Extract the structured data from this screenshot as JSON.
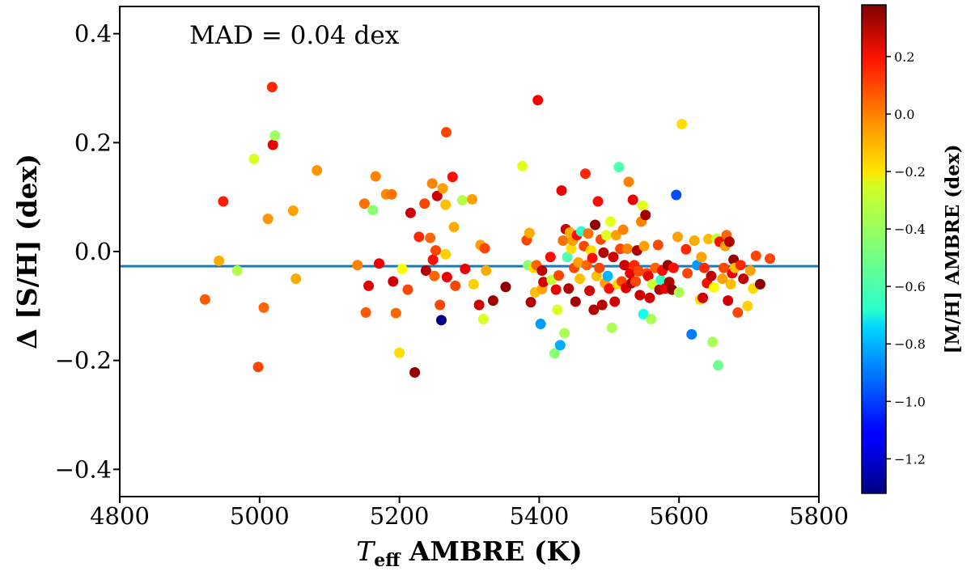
{
  "chart_data": {
    "type": "scatter",
    "xlabel": "T_eff AMBRE (K)",
    "xlabel_main": "T",
    "xlabel_sub": "eff",
    "xlabel_rest": " AMBRE (K)",
    "ylabel": "Δ [S/H] (dex)",
    "annotation": "MAD = 0.04 dex",
    "xlim": [
      4800,
      5800
    ],
    "ylim": [
      -0.45,
      0.45
    ],
    "x_ticks": [
      4800,
      5000,
      5200,
      5400,
      5600,
      5800
    ],
    "x_tick_labels": [
      "4800",
      "5000",
      "5200",
      "5400",
      "5600",
      "5800"
    ],
    "y_ticks": [
      0.4,
      0.2,
      0.0,
      -0.2,
      -0.4
    ],
    "y_tick_labels": [
      "0.4",
      "0.2",
      "0.0",
      "−0.2",
      "−0.4"
    ],
    "reference_line": {
      "y": -0.027,
      "color": "#1f77b4"
    },
    "colorbar": {
      "label": "[M/H] AMBRE (dex)",
      "colormap": "jet",
      "range": [
        -1.32,
        0.38
      ],
      "ticks": [
        0.2,
        0.0,
        -0.2,
        -0.4,
        -0.6,
        -0.8,
        -1.0,
        -1.2
      ],
      "tick_labels": [
        "0.2",
        "0.0",
        "−0.2",
        "−0.4",
        "−0.6",
        "−0.8",
        "−1.0",
        "−1.2"
      ]
    },
    "points": [
      {
        "teff": 4922,
        "dsh": -0.088,
        "mh": 0.02
      },
      {
        "teff": 4942,
        "dsh": -0.017,
        "mh": -0.12
      },
      {
        "teff": 4948,
        "dsh": 0.092,
        "mh": 0.12
      },
      {
        "teff": 4968,
        "dsh": -0.035,
        "mh": -0.38
      },
      {
        "teff": 4992,
        "dsh": 0.17,
        "mh": -0.32
      },
      {
        "teff": 4998,
        "dsh": -0.212,
        "mh": 0.05
      },
      {
        "teff": 5006,
        "dsh": -0.103,
        "mh": 0.0
      },
      {
        "teff": 5012,
        "dsh": 0.06,
        "mh": -0.08
      },
      {
        "teff": 5018,
        "dsh": 0.302,
        "mh": 0.1
      },
      {
        "teff": 5019,
        "dsh": 0.196,
        "mh": 0.2
      },
      {
        "teff": 5022,
        "dsh": 0.213,
        "mh": -0.42
      },
      {
        "teff": 5048,
        "dsh": 0.075,
        "mh": -0.1
      },
      {
        "teff": 5052,
        "dsh": -0.05,
        "mh": -0.12
      },
      {
        "teff": 5082,
        "dsh": 0.149,
        "mh": -0.08
      },
      {
        "teff": 5140,
        "dsh": -0.025,
        "mh": -0.05
      },
      {
        "teff": 5150,
        "dsh": 0.088,
        "mh": -0.02
      },
      {
        "teff": 5152,
        "dsh": -0.112,
        "mh": 0.02
      },
      {
        "teff": 5156,
        "dsh": -0.063,
        "mh": 0.22
      },
      {
        "teff": 5162,
        "dsh": 0.076,
        "mh": -0.45
      },
      {
        "teff": 5166,
        "dsh": 0.138,
        "mh": -0.05
      },
      {
        "teff": 5171,
        "dsh": -0.022,
        "mh": 0.2
      },
      {
        "teff": 5181,
        "dsh": 0.105,
        "mh": -0.06
      },
      {
        "teff": 5189,
        "dsh": 0.105,
        "mh": -0.02
      },
      {
        "teff": 5191,
        "dsh": -0.055,
        "mh": 0.25
      },
      {
        "teff": 5195,
        "dsh": -0.113,
        "mh": 0.0
      },
      {
        "teff": 5200,
        "dsh": -0.186,
        "mh": -0.2
      },
      {
        "teff": 5204,
        "dsh": -0.032,
        "mh": -0.25
      },
      {
        "teff": 5212,
        "dsh": -0.07,
        "mh": 0.05
      },
      {
        "teff": 5216,
        "dsh": 0.071,
        "mh": 0.25
      },
      {
        "teff": 5222,
        "dsh": -0.222,
        "mh": 0.35
      },
      {
        "teff": 5228,
        "dsh": 0.027,
        "mh": 0.1
      },
      {
        "teff": 5236,
        "dsh": 0.088,
        "mh": 0.05
      },
      {
        "teff": 5238,
        "dsh": -0.035,
        "mh": 0.3
      },
      {
        "teff": 5244,
        "dsh": 0.025,
        "mh": 0.0
      },
      {
        "teff": 5247,
        "dsh": 0.125,
        "mh": -0.05
      },
      {
        "teff": 5248,
        "dsh": -0.015,
        "mh": 0.15
      },
      {
        "teff": 5250,
        "dsh": -0.045,
        "mh": 0.0
      },
      {
        "teff": 5252,
        "dsh": 0.002,
        "mh": 0.05
      },
      {
        "teff": 5254,
        "dsh": 0.102,
        "mh": 0.25
      },
      {
        "teff": 5258,
        "dsh": -0.098,
        "mh": 0.05
      },
      {
        "teff": 5260,
        "dsh": -0.126,
        "mh": -1.3
      },
      {
        "teff": 5262,
        "dsh": 0.116,
        "mh": -0.1
      },
      {
        "teff": 5266,
        "dsh": 0.086,
        "mh": -0.15
      },
      {
        "teff": 5266,
        "dsh": -0.005,
        "mh": -0.18
      },
      {
        "teff": 5267,
        "dsh": 0.219,
        "mh": 0.05
      },
      {
        "teff": 5268,
        "dsh": -0.047,
        "mh": 0.2
      },
      {
        "teff": 5276,
        "dsh": 0.137,
        "mh": 0.15
      },
      {
        "teff": 5278,
        "dsh": 0.045,
        "mh": -0.12
      },
      {
        "teff": 5280,
        "dsh": -0.063,
        "mh": 0.05
      },
      {
        "teff": 5290,
        "dsh": 0.094,
        "mh": -0.38
      },
      {
        "teff": 5294,
        "dsh": -0.032,
        "mh": 0.2
      },
      {
        "teff": 5304,
        "dsh": 0.096,
        "mh": -0.1
      },
      {
        "teff": 5306,
        "dsh": -0.06,
        "mh": -0.18
      },
      {
        "teff": 5314,
        "dsh": -0.098,
        "mh": 0.25
      },
      {
        "teff": 5316,
        "dsh": 0.012,
        "mh": -0.1
      },
      {
        "teff": 5320,
        "dsh": -0.124,
        "mh": -0.32
      },
      {
        "teff": 5322,
        "dsh": 0.006,
        "mh": 0.05
      },
      {
        "teff": 5324,
        "dsh": -0.035,
        "mh": -0.12
      },
      {
        "teff": 5334,
        "dsh": -0.09,
        "mh": 0.32
      },
      {
        "teff": 5352,
        "dsh": -0.065,
        "mh": 0.35
      },
      {
        "teff": 5376,
        "dsh": 0.157,
        "mh": -0.3
      },
      {
        "teff": 5382,
        "dsh": 0.021,
        "mh": 0.05
      },
      {
        "teff": 5384,
        "dsh": -0.025,
        "mh": -0.45
      },
      {
        "teff": 5386,
        "dsh": 0.034,
        "mh": -0.12
      },
      {
        "teff": 5388,
        "dsh": -0.093,
        "mh": 0.3
      },
      {
        "teff": 5392,
        "dsh": -0.03,
        "mh": -0.2
      },
      {
        "teff": 5394,
        "dsh": -0.075,
        "mh": -0.15
      },
      {
        "teff": 5396,
        "dsh": -0.025,
        "mh": 0.0
      },
      {
        "teff": 5398,
        "dsh": 0.278,
        "mh": 0.18
      },
      {
        "teff": 5402,
        "dsh": -0.133,
        "mh": -0.85
      },
      {
        "teff": 5404,
        "dsh": -0.035,
        "mh": 0.28
      },
      {
        "teff": 5404,
        "dsh": -0.069,
        "mh": -0.1
      },
      {
        "teff": 5406,
        "dsh": -0.056,
        "mh": 0.25
      },
      {
        "teff": 5416,
        "dsh": -0.01,
        "mh": 0.15
      },
      {
        "teff": 5418,
        "dsh": -0.052,
        "mh": -0.35
      },
      {
        "teff": 5422,
        "dsh": -0.187,
        "mh": -0.45
      },
      {
        "teff": 5424,
        "dsh": -0.07,
        "mh": 0.2
      },
      {
        "teff": 5426,
        "dsh": -0.107,
        "mh": -0.32
      },
      {
        "teff": 5428,
        "dsh": -0.044,
        "mh": 0.05
      },
      {
        "teff": 5430,
        "dsh": -0.172,
        "mh": -0.82
      },
      {
        "teff": 5432,
        "dsh": 0.112,
        "mh": 0.2
      },
      {
        "teff": 5434,
        "dsh": 0.02,
        "mh": -0.02
      },
      {
        "teff": 5436,
        "dsh": -0.15,
        "mh": -0.4
      },
      {
        "teff": 5438,
        "dsh": 0.041,
        "mh": 0.25
      },
      {
        "teff": 5440,
        "dsh": -0.01,
        "mh": -0.55
      },
      {
        "teff": 5442,
        "dsh": -0.068,
        "mh": 0.3
      },
      {
        "teff": 5444,
        "dsh": 0.035,
        "mh": -0.12
      },
      {
        "teff": 5446,
        "dsh": 0.005,
        "mh": -0.2
      },
      {
        "teff": 5448,
        "dsh": 0.02,
        "mh": -0.1
      },
      {
        "teff": 5450,
        "dsh": -0.03,
        "mh": 0.05
      },
      {
        "teff": 5452,
        "dsh": -0.092,
        "mh": 0.32
      },
      {
        "teff": 5454,
        "dsh": 0.03,
        "mh": 0.15
      },
      {
        "teff": 5456,
        "dsh": -0.02,
        "mh": -0.1
      },
      {
        "teff": 5458,
        "dsh": -0.05,
        "mh": -0.15
      },
      {
        "teff": 5460,
        "dsh": 0.037,
        "mh": -0.6
      },
      {
        "teff": 5464,
        "dsh": 0.01,
        "mh": 0.05
      },
      {
        "teff": 5466,
        "dsh": 0.143,
        "mh": 0.1
      },
      {
        "teff": 5468,
        "dsh": -0.025,
        "mh": 0.0
      },
      {
        "teff": 5470,
        "dsh": 0.033,
        "mh": -0.02
      },
      {
        "teff": 5472,
        "dsh": -0.072,
        "mh": 0.25
      },
      {
        "teff": 5474,
        "dsh": 0.002,
        "mh": -0.2
      },
      {
        "teff": 5476,
        "dsh": -0.012,
        "mh": 0.15
      },
      {
        "teff": 5478,
        "dsh": -0.107,
        "mh": 0.3
      },
      {
        "teff": 5480,
        "dsh": 0.049,
        "mh": 0.35
      },
      {
        "teff": 5482,
        "dsh": -0.045,
        "mh": -0.15
      },
      {
        "teff": 5484,
        "dsh": 0.092,
        "mh": 0.15
      },
      {
        "teff": 5486,
        "dsh": -0.03,
        "mh": 0.05
      },
      {
        "teff": 5488,
        "dsh": 0.022,
        "mh": 0.05
      },
      {
        "teff": 5490,
        "dsh": -0.098,
        "mh": 0.28
      },
      {
        "teff": 5492,
        "dsh": -0.002,
        "mh": 0.3
      },
      {
        "teff": 5494,
        "dsh": -0.058,
        "mh": -0.1
      },
      {
        "teff": 5496,
        "dsh": 0.03,
        "mh": -0.3
      },
      {
        "teff": 5498,
        "dsh": -0.045,
        "mh": -0.8
      },
      {
        "teff": 5500,
        "dsh": -0.068,
        "mh": 0.15
      },
      {
        "teff": 5502,
        "dsh": 0.055,
        "mh": -0.3
      },
      {
        "teff": 5504,
        "dsh": -0.14,
        "mh": -0.4
      },
      {
        "teff": 5506,
        "dsh": -0.01,
        "mh": 0.25
      },
      {
        "teff": 5508,
        "dsh": -0.092,
        "mh": 0.25
      },
      {
        "teff": 5510,
        "dsh": 0.03,
        "mh": -0.1
      },
      {
        "teff": 5512,
        "dsh": -0.06,
        "mh": -0.2
      },
      {
        "teff": 5514,
        "dsh": 0.155,
        "mh": -0.55
      },
      {
        "teff": 5516,
        "dsh": 0.005,
        "mh": 0.05
      },
      {
        "teff": 5518,
        "dsh": -0.055,
        "mh": 0.05
      },
      {
        "teff": 5520,
        "dsh": 0.04,
        "mh": -0.05
      },
      {
        "teff": 5522,
        "dsh": -0.025,
        "mh": 0.25
      },
      {
        "teff": 5524,
        "dsh": -0.067,
        "mh": 0.22
      },
      {
        "teff": 5526,
        "dsh": 0.005,
        "mh": -0.05
      },
      {
        "teff": 5528,
        "dsh": 0.128,
        "mh": -0.05
      },
      {
        "teff": 5530,
        "dsh": -0.04,
        "mh": 0.2
      },
      {
        "teff": 5532,
        "dsh": -0.058,
        "mh": 0.3
      },
      {
        "teff": 5534,
        "dsh": 0.095,
        "mh": 0.2
      },
      {
        "teff": 5536,
        "dsh": -0.025,
        "mh": 0.1
      },
      {
        "teff": 5538,
        "dsh": -0.055,
        "mh": 0.05
      },
      {
        "teff": 5540,
        "dsh": 0.002,
        "mh": 0.3
      },
      {
        "teff": 5542,
        "dsh": -0.036,
        "mh": 0.05
      },
      {
        "teff": 5544,
        "dsh": -0.08,
        "mh": 0.25
      },
      {
        "teff": 5546,
        "dsh": 0.055,
        "mh": -0.05
      },
      {
        "teff": 5548,
        "dsh": 0.084,
        "mh": -0.3
      },
      {
        "teff": 5549,
        "dsh": -0.115,
        "mh": -0.65
      },
      {
        "teff": 5550,
        "dsh": 0.01,
        "mh": -0.1
      },
      {
        "teff": 5552,
        "dsh": 0.067,
        "mh": 0.32
      },
      {
        "teff": 5554,
        "dsh": -0.04,
        "mh": 0.05
      },
      {
        "teff": 5556,
        "dsh": -0.045,
        "mh": 0.2
      },
      {
        "teff": 5558,
        "dsh": -0.085,
        "mh": 0.25
      },
      {
        "teff": 5560,
        "dsh": -0.124,
        "mh": -0.4
      },
      {
        "teff": 5562,
        "dsh": -0.06,
        "mh": -0.35
      },
      {
        "teff": 5566,
        "dsh": -0.03,
        "mh": 0.0
      },
      {
        "teff": 5570,
        "dsh": 0.012,
        "mh": 0.05
      },
      {
        "teff": 5572,
        "dsh": -0.07,
        "mh": 0.3
      },
      {
        "teff": 5574,
        "dsh": -0.052,
        "mh": -0.6
      },
      {
        "teff": 5576,
        "dsh": -0.035,
        "mh": 0.15
      },
      {
        "teff": 5580,
        "dsh": -0.068,
        "mh": 0.2
      },
      {
        "teff": 5584,
        "dsh": -0.025,
        "mh": 0.35
      },
      {
        "teff": 5586,
        "dsh": -0.056,
        "mh": 0.3
      },
      {
        "teff": 5590,
        "dsh": -0.07,
        "mh": 0.35
      },
      {
        "teff": 5592,
        "dsh": -0.03,
        "mh": 0.15
      },
      {
        "teff": 5596,
        "dsh": 0.104,
        "mh": -0.98
      },
      {
        "teff": 5598,
        "dsh": 0.027,
        "mh": -0.1
      },
      {
        "teff": 5600,
        "dsh": -0.075,
        "mh": -0.4
      },
      {
        "teff": 5604,
        "dsh": 0.234,
        "mh": -0.2
      },
      {
        "teff": 5610,
        "dsh": 0.004,
        "mh": 0.1
      },
      {
        "teff": 5612,
        "dsh": -0.04,
        "mh": 0.05
      },
      {
        "teff": 5618,
        "dsh": -0.152,
        "mh": -0.9
      },
      {
        "teff": 5622,
        "dsh": 0.02,
        "mh": -0.12
      },
      {
        "teff": 5626,
        "dsh": -0.025,
        "mh": -0.85
      },
      {
        "teff": 5630,
        "dsh": -0.088,
        "mh": -0.2
      },
      {
        "teff": 5632,
        "dsh": -0.01,
        "mh": -0.1
      },
      {
        "teff": 5634,
        "dsh": -0.085,
        "mh": 0.25
      },
      {
        "teff": 5636,
        "dsh": -0.03,
        "mh": 0.1
      },
      {
        "teff": 5640,
        "dsh": -0.058,
        "mh": 0.15
      },
      {
        "teff": 5642,
        "dsh": 0.023,
        "mh": -0.15
      },
      {
        "teff": 5646,
        "dsh": -0.045,
        "mh": 0.28
      },
      {
        "teff": 5648,
        "dsh": -0.166,
        "mh": -0.4
      },
      {
        "teff": 5650,
        "dsh": -0.066,
        "mh": -0.25
      },
      {
        "teff": 5654,
        "dsh": 0.024,
        "mh": -0.35
      },
      {
        "teff": 5656,
        "dsh": -0.209,
        "mh": -0.5
      },
      {
        "teff": 5658,
        "dsh": 0.018,
        "mh": 0.15
      },
      {
        "teff": 5662,
        "dsh": -0.05,
        "mh": -0.1
      },
      {
        "teff": 5664,
        "dsh": -0.03,
        "mh": 0.05
      },
      {
        "teff": 5666,
        "dsh": 0.01,
        "mh": -0.1
      },
      {
        "teff": 5668,
        "dsh": 0.03,
        "mh": 0.0
      },
      {
        "teff": 5670,
        "dsh": -0.09,
        "mh": 0.25
      },
      {
        "teff": 5672,
        "dsh": 0.018,
        "mh": 0.3
      },
      {
        "teff": 5674,
        "dsh": -0.06,
        "mh": -0.15
      },
      {
        "teff": 5676,
        "dsh": -0.04,
        "mh": 0.2
      },
      {
        "teff": 5678,
        "dsh": -0.015,
        "mh": 0.35
      },
      {
        "teff": 5680,
        "dsh": -0.03,
        "mh": -0.15
      },
      {
        "teff": 5684,
        "dsh": -0.112,
        "mh": 0.05
      },
      {
        "teff": 5688,
        "dsh": -0.025,
        "mh": 0.1
      },
      {
        "teff": 5692,
        "dsh": -0.05,
        "mh": 0.28
      },
      {
        "teff": 5698,
        "dsh": -0.1,
        "mh": -0.18
      },
      {
        "teff": 5702,
        "dsh": -0.035,
        "mh": -0.1
      },
      {
        "teff": 5706,
        "dsh": -0.068,
        "mh": -0.2
      },
      {
        "teff": 5710,
        "dsh": -0.008,
        "mh": 0.05
      },
      {
        "teff": 5716,
        "dsh": -0.06,
        "mh": 0.35
      },
      {
        "teff": 5730,
        "dsh": -0.013,
        "mh": 0.05
      }
    ]
  }
}
